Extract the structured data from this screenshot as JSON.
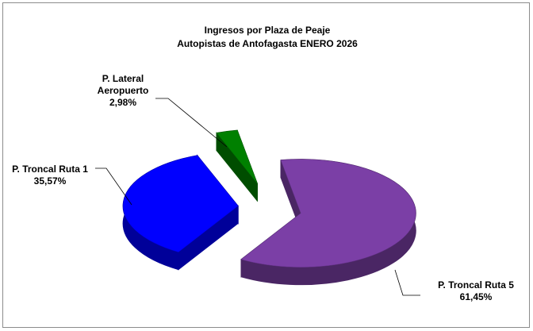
{
  "chart_data": {
    "type": "pie",
    "title": "Ingresos por Plaza de Peaje",
    "subtitle": "Autopistas de Antofagasta ENERO 2026",
    "categories": [
      "P. Troncal Ruta 5",
      "P. Troncal Ruta 1",
      "P. Lateral Aeropuerto"
    ],
    "values": [
      61.45,
      35.57,
      2.98
    ],
    "value_labels": [
      "61,45%",
      "35,57%",
      "2,98%"
    ],
    "colors": [
      "#7b3fa6",
      "#0000ff",
      "#008000"
    ]
  }
}
